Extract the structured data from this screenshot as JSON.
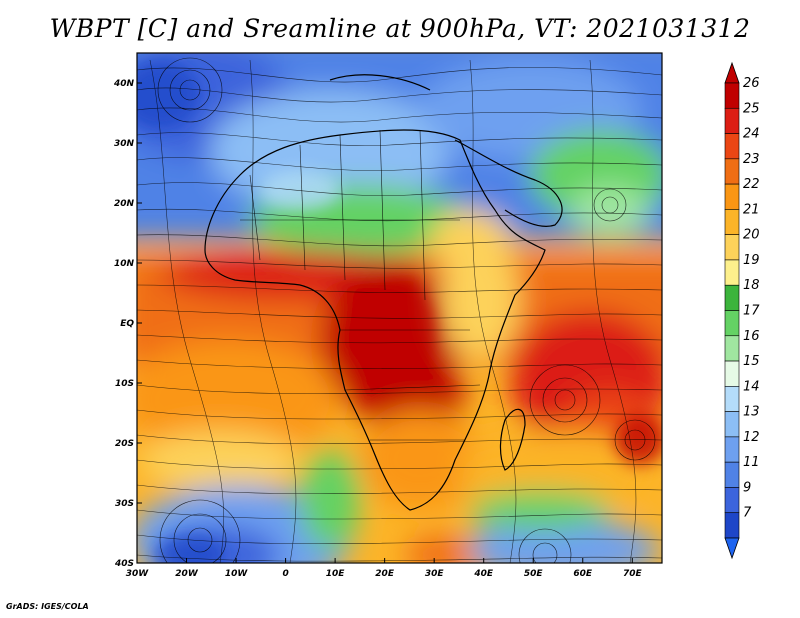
{
  "title": "WBPT [C] and Sreamline at 900hPa, VT: 2021031312",
  "footer": "GrADS: IGES/COLA",
  "map": {
    "lon_range": [
      -30,
      76
    ],
    "lat_range": [
      -40,
      45
    ],
    "x_ticks": [
      {
        "lon": -30,
        "label": "30W"
      },
      {
        "lon": -20,
        "label": "20W"
      },
      {
        "lon": -10,
        "label": "10W"
      },
      {
        "lon": 0,
        "label": "0"
      },
      {
        "lon": 10,
        "label": "10E"
      },
      {
        "lon": 20,
        "label": "20E"
      },
      {
        "lon": 30,
        "label": "30E"
      },
      {
        "lon": 40,
        "label": "40E"
      },
      {
        "lon": 50,
        "label": "50E"
      },
      {
        "lon": 60,
        "label": "60E"
      },
      {
        "lon": 70,
        "label": "70E"
      }
    ],
    "y_ticks": [
      {
        "lat": 40,
        "label": "40N"
      },
      {
        "lat": 30,
        "label": "30N"
      },
      {
        "lat": 20,
        "label": "20N"
      },
      {
        "lat": 10,
        "label": "10N"
      },
      {
        "lat": 0,
        "label": "EQ"
      },
      {
        "lat": -10,
        "label": "10S"
      },
      {
        "lat": -20,
        "label": "20S"
      },
      {
        "lat": -30,
        "label": "30S"
      },
      {
        "lat": -40,
        "label": "40S"
      }
    ]
  },
  "colorbar": {
    "levels": [
      "26",
      "25",
      "24",
      "23",
      "22",
      "21",
      "20",
      "19",
      "18",
      "17",
      "16",
      "15",
      "14",
      "13",
      "12",
      "11",
      "9",
      "7"
    ],
    "colors": [
      "#c00000",
      "#dc1e14",
      "#eb4614",
      "#f06e14",
      "#fa9614",
      "#fcb428",
      "#fdd25a",
      "#fdf08c",
      "#3cb43c",
      "#64d264",
      "#a0e6a0",
      "#e6fae6",
      "#b4dcfa",
      "#8cbef5",
      "#6ea0f0",
      "#5082e6",
      "#3c64dc",
      "#1e46c8"
    ]
  },
  "chart_data": {
    "type": "heatmap",
    "title": "WBPT [C] and Sreamline at 900hPa, VT: 2021031312",
    "x_range": [
      -30,
      76
    ],
    "y_range": [
      -40,
      45
    ],
    "field_note_levels_C": [
      7,
      9,
      11,
      12,
      13,
      14,
      15,
      16,
      17,
      18,
      19,
      20,
      21,
      22,
      23,
      24,
      25,
      26
    ]
  }
}
